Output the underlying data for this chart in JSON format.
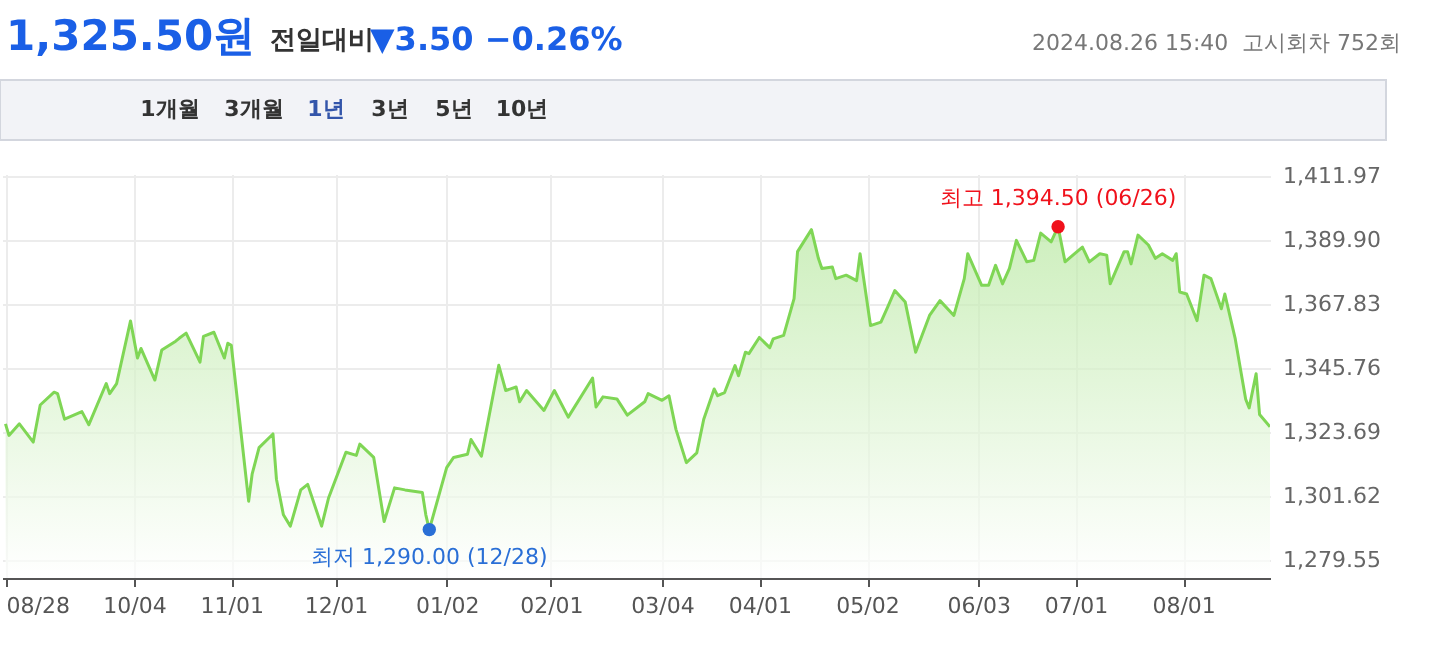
{
  "chart_data": {
    "type": "area",
    "title": "1,325.50원",
    "subtitle": "전일대비",
    "annotations": [
      "▼3.50 −0.26%",
      "2024.08.26 15:40",
      "고시회차 752회",
      "1개월",
      "3개월",
      "1년",
      "3년",
      "5년",
      "10년",
      {
        "text": "최저 1,290.00 (12/28)",
        "x": "2023-12-28",
        "y": 1290.0
      },
      {
        "text": "최고 1,394.50 (06/26)",
        "x": "2024-06-26",
        "y": 1394.5
      }
    ],
    "xlim": [
      "2023-08-27",
      "2024-08-26"
    ],
    "xticks": [
      {
        "value": "2023-08-28",
        "label": "08/28"
      },
      {
        "value": "2023-10-04",
        "label": "10/04"
      },
      {
        "value": "2023-11-01",
        "label": "11/01"
      },
      {
        "value": "2023-12-01",
        "label": "12/01"
      },
      {
        "value": "2024-01-02",
        "label": "01/02"
      },
      {
        "value": "2024-02-01",
        "label": "02/01"
      },
      {
        "value": "2024-03-04",
        "label": "03/04"
      },
      {
        "value": "2024-04-01",
        "label": "04/01"
      },
      {
        "value": "2024-05-02",
        "label": "05/02"
      },
      {
        "value": "2024-06-03",
        "label": "06/03"
      },
      {
        "value": "2024-07-01",
        "label": "07/01"
      },
      {
        "value": "2024-08-01",
        "label": "08/01"
      }
    ],
    "ylim": [
      1273.3,
      1412.7
    ],
    "yticks": [
      {
        "value": 1279.55,
        "label": "1,279.55"
      },
      {
        "value": 1301.62,
        "label": "1,301.62"
      },
      {
        "value": 1323.69,
        "label": "1,323.69"
      },
      {
        "value": 1345.76,
        "label": "1,345.76"
      },
      {
        "value": 1367.83,
        "label": "1,367.83"
      },
      {
        "value": 1389.9,
        "label": "1,389.90"
      },
      {
        "value": 1411.97,
        "label": "1,411.97"
      }
    ],
    "grid": true,
    "series": [
      {
        "type": "area",
        "color": "#7fd655",
        "x": [
          "2023-08-28",
          "2023-08-29",
          "2023-09-01",
          "2023-09-05",
          "2023-09-07",
          "2023-09-11",
          "2023-09-12",
          "2023-09-14",
          "2023-09-19",
          "2023-09-21",
          "2023-09-26",
          "2023-09-27",
          "2023-09-29",
          "2023-10-03",
          "2023-10-05",
          "2023-10-06",
          "2023-10-10",
          "2023-10-12",
          "2023-10-16",
          "2023-10-17",
          "2023-10-19",
          "2023-10-23",
          "2023-10-24",
          "2023-10-27",
          "2023-10-30",
          "2023-10-31",
          "2023-11-01",
          "2023-11-06",
          "2023-11-07",
          "2023-11-09",
          "2023-11-13",
          "2023-11-14",
          "2023-11-16",
          "2023-11-18",
          "2023-11-21",
          "2023-11-23",
          "2023-11-27",
          "2023-11-29",
          "2023-12-04",
          "2023-12-07",
          "2023-12-08",
          "2023-12-12",
          "2023-12-15",
          "2023-12-18",
          "2023-12-21",
          "2023-12-26",
          "2023-12-27",
          "2023-12-28",
          "2024-01-02",
          "2024-01-04",
          "2024-01-08",
          "2024-01-09",
          "2024-01-12",
          "2024-01-17",
          "2024-01-19",
          "2024-01-22",
          "2024-01-23",
          "2024-01-25",
          "2024-01-30",
          "2024-02-02",
          "2024-02-06",
          "2024-02-13",
          "2024-02-14",
          "2024-02-16",
          "2024-02-20",
          "2024-02-23",
          "2024-02-28",
          "2024-02-29",
          "2024-03-04",
          "2024-03-06",
          "2024-03-08",
          "2024-03-11",
          "2024-03-14",
          "2024-03-16",
          "2024-03-19",
          "2024-03-20",
          "2024-03-22",
          "2024-03-25",
          "2024-03-26",
          "2024-03-28",
          "2024-03-29",
          "2024-04-01",
          "2024-04-04",
          "2024-04-05",
          "2024-04-08",
          "2024-04-11",
          "2024-04-12",
          "2024-04-16",
          "2024-04-18",
          "2024-04-19",
          "2024-04-22",
          "2024-04-23",
          "2024-04-26",
          "2024-04-29",
          "2024-04-30",
          "2024-05-03",
          "2024-05-06",
          "2024-05-08",
          "2024-05-10",
          "2024-05-13",
          "2024-05-16",
          "2024-05-20",
          "2024-05-23",
          "2024-05-27",
          "2024-05-30",
          "2024-05-31",
          "2024-06-04",
          "2024-06-06",
          "2024-06-08",
          "2024-06-10",
          "2024-06-12",
          "2024-06-14",
          "2024-06-17",
          "2024-06-19",
          "2024-06-21",
          "2024-06-24",
          "2024-06-26",
          "2024-06-28",
          "2024-07-03",
          "2024-07-05",
          "2024-07-08",
          "2024-07-10",
          "2024-07-11",
          "2024-07-15",
          "2024-07-16",
          "2024-07-17",
          "2024-07-19",
          "2024-07-22",
          "2024-07-24",
          "2024-07-26",
          "2024-07-29",
          "2024-07-30",
          "2024-07-31",
          "2024-08-02",
          "2024-08-05",
          "2024-08-07",
          "2024-08-09",
          "2024-08-12",
          "2024-08-13",
          "2024-08-16",
          "2024-08-19",
          "2024-08-20",
          "2024-08-22",
          "2024-08-23",
          "2024-08-26"
        ],
        "values": [
          1326.5,
          1322.5,
          1326.5,
          1320.2,
          1333.0,
          1337.4,
          1336.9,
          1328.1,
          1330.7,
          1326.2,
          1340.4,
          1336.9,
          1340.4,
          1362.0,
          1349.2,
          1352.5,
          1341.6,
          1352.0,
          1355.0,
          1356.0,
          1357.8,
          1347.8,
          1356.7,
          1358.1,
          1349.2,
          1354.3,
          1353.6,
          1299.8,
          1309.1,
          1318.3,
          1323.0,
          1307.4,
          1295.1,
          1291.2,
          1303.7,
          1305.6,
          1291.2,
          1300.9,
          1316.7,
          1315.6,
          1319.5,
          1314.9,
          1292.8,
          1304.4,
          1303.7,
          1302.8,
          1295.1,
          1290.0,
          1311.4,
          1314.9,
          1316.0,
          1321.1,
          1315.3,
          1346.7,
          1338.0,
          1339.2,
          1334.1,
          1338.0,
          1331.1,
          1338.0,
          1328.8,
          1342.3,
          1332.3,
          1335.8,
          1335.1,
          1329.5,
          1334.1,
          1336.9,
          1334.6,
          1336.2,
          1324.6,
          1313.1,
          1316.5,
          1328.1,
          1338.5,
          1336.2,
          1337.3,
          1346.6,
          1343.1,
          1351.2,
          1350.7,
          1356.3,
          1352.8,
          1355.8,
          1357.0,
          1369.7,
          1385.9,
          1393.5,
          1383.6,
          1380.1,
          1380.6,
          1376.6,
          1377.8,
          1375.9,
          1385.2,
          1360.4,
          1361.6,
          1366.9,
          1372.5,
          1368.5,
          1351.2,
          1363.9,
          1369.0,
          1363.9,
          1376.6,
          1385.2,
          1374.3,
          1374.3,
          1381.2,
          1374.8,
          1380.1,
          1389.8,
          1382.4,
          1382.9,
          1392.3,
          1389.3,
          1394.5,
          1382.4,
          1387.5,
          1382.4,
          1385.2,
          1384.7,
          1374.8,
          1385.9,
          1385.9,
          1381.7,
          1391.6,
          1388.2,
          1383.6,
          1385.2,
          1382.9,
          1385.2,
          1372.0,
          1371.3,
          1362.1,
          1377.8,
          1376.6,
          1366.2,
          1371.3,
          1355.8,
          1335.0,
          1332.0,
          1343.8,
          1329.7,
          1325.5
        ]
      },
      {
        "type": "scatter",
        "color": "#2a6fd6",
        "marker": "circle",
        "x": [
          "2023-12-28"
        ],
        "values": [
          1290.0
        ]
      },
      {
        "type": "scatter",
        "color": "#f0111b",
        "marker": "circle",
        "x": [
          "2024-06-26"
        ],
        "values": [
          1394.5
        ]
      }
    ]
  }
}
